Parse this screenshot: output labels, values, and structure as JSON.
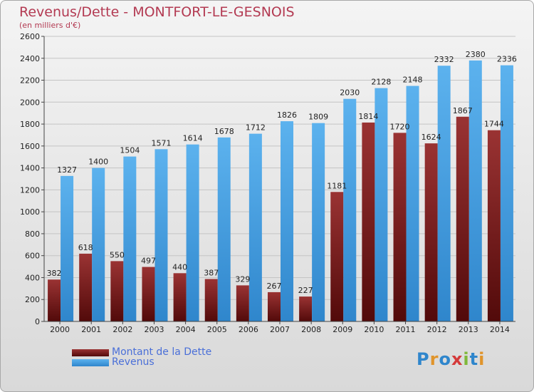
{
  "title": "Revenus/Dette - MONTFORT-LE-GESNOIS",
  "subtitle": "(en milliers d'€)",
  "logo": "Proxiti",
  "colors": {
    "debt": "#7a1f1f",
    "revenue": "#3d9ae0",
    "title": "#b33a52",
    "legend_text": "#4a6fd8"
  },
  "chart_data": {
    "type": "bar",
    "title": "Revenus/Dette - MONTFORT-LE-GESNOIS",
    "ylabel": "(en milliers d'€)",
    "categories": [
      "2000",
      "2001",
      "2002",
      "2003",
      "2004",
      "2005",
      "2006",
      "2007",
      "2008",
      "2009",
      "2010",
      "2011",
      "2012",
      "2013",
      "2014"
    ],
    "ylim": [
      0,
      2600
    ],
    "yticks": [
      0,
      200,
      400,
      600,
      800,
      1000,
      1200,
      1400,
      1600,
      1800,
      2000,
      2200,
      2400,
      2600
    ],
    "grid": true,
    "series": [
      {
        "name": "Montant de la Dette",
        "values": [
          382,
          618,
          550,
          497,
          440,
          387,
          329,
          267,
          227,
          1181,
          1814,
          1720,
          1624,
          1867,
          1744
        ]
      },
      {
        "name": "Revenus",
        "values": [
          1327,
          1400,
          1504,
          1571,
          1614,
          1678,
          1712,
          1826,
          1809,
          2030,
          2128,
          2148,
          2332,
          2380,
          2336
        ]
      }
    ],
    "legend_position": "bottom-left"
  }
}
